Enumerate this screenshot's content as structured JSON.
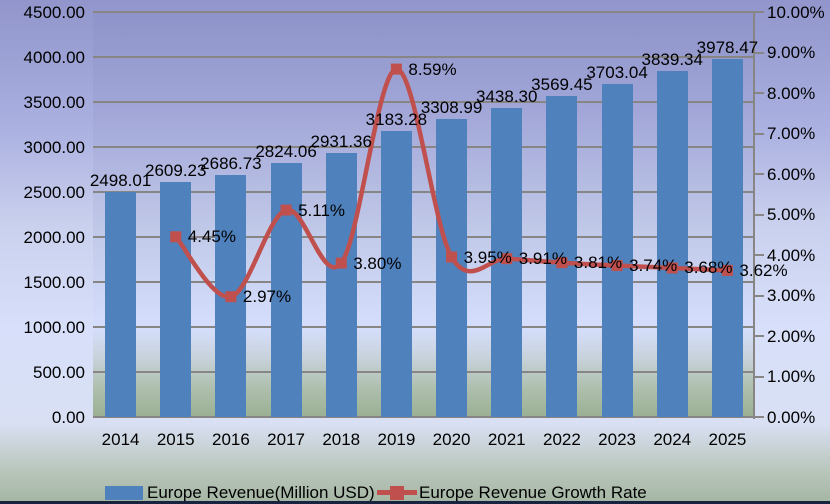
{
  "chart_data": {
    "type": "bar",
    "subtype": "combo-bar-line",
    "title": "",
    "categories": [
      "2014",
      "2015",
      "2016",
      "2017",
      "2018",
      "2019",
      "2020",
      "2021",
      "2022",
      "2023",
      "2024",
      "2025"
    ],
    "series": [
      {
        "name": "Europe Revenue(Million USD)",
        "type": "bar",
        "color": "#4f81bd",
        "axis": "left",
        "values": [
          2498.01,
          2609.23,
          2686.73,
          2824.06,
          2931.36,
          3183.28,
          3308.99,
          3438.3,
          3569.45,
          3703.04,
          3839.34,
          3978.47
        ],
        "labels": [
          "2498.01",
          "2609.23",
          "2686.73",
          "2824.06",
          "2931.36",
          "3183.28",
          "3308.99",
          "3438.30",
          "3569.45",
          "3703.04",
          "3839.34",
          "3978.47"
        ]
      },
      {
        "name": "Europe Revenue Growth Rate",
        "type": "line",
        "color": "#c0504d",
        "axis": "right",
        "values": [
          null,
          4.45,
          2.97,
          5.11,
          3.8,
          8.59,
          3.95,
          3.91,
          3.81,
          3.74,
          3.68,
          3.62
        ],
        "labels": [
          null,
          "4.45%",
          "2.97%",
          "5.11%",
          "3.80%",
          "8.59%",
          "3.95%",
          "3.91%",
          "3.81%",
          "3.74%",
          "3.68%",
          "3.62%"
        ]
      }
    ],
    "left_axis": {
      "min": 0,
      "max": 4500,
      "step": 500,
      "ticks": [
        "4500.00",
        "4000.00",
        "3500.00",
        "3000.00",
        "2500.00",
        "2000.00",
        "1500.00",
        "1000.00",
        "500.00",
        "0.00"
      ]
    },
    "right_axis": {
      "min": 0,
      "max": 10,
      "step": 1,
      "ticks": [
        "10.00%",
        "9.00%",
        "8.00%",
        "7.00%",
        "6.00%",
        "5.00%",
        "4.00%",
        "3.00%",
        "2.00%",
        "1.00%",
        "0.00%"
      ]
    },
    "legend": [
      "Europe Revenue(Million USD)",
      "Europe Revenue Growth Rate"
    ],
    "legend_position": "bottom",
    "grid": true,
    "colors": {
      "bar": "#4f81bd",
      "line": "#c0504d",
      "gridline": "#888585",
      "text": "#000000"
    }
  }
}
